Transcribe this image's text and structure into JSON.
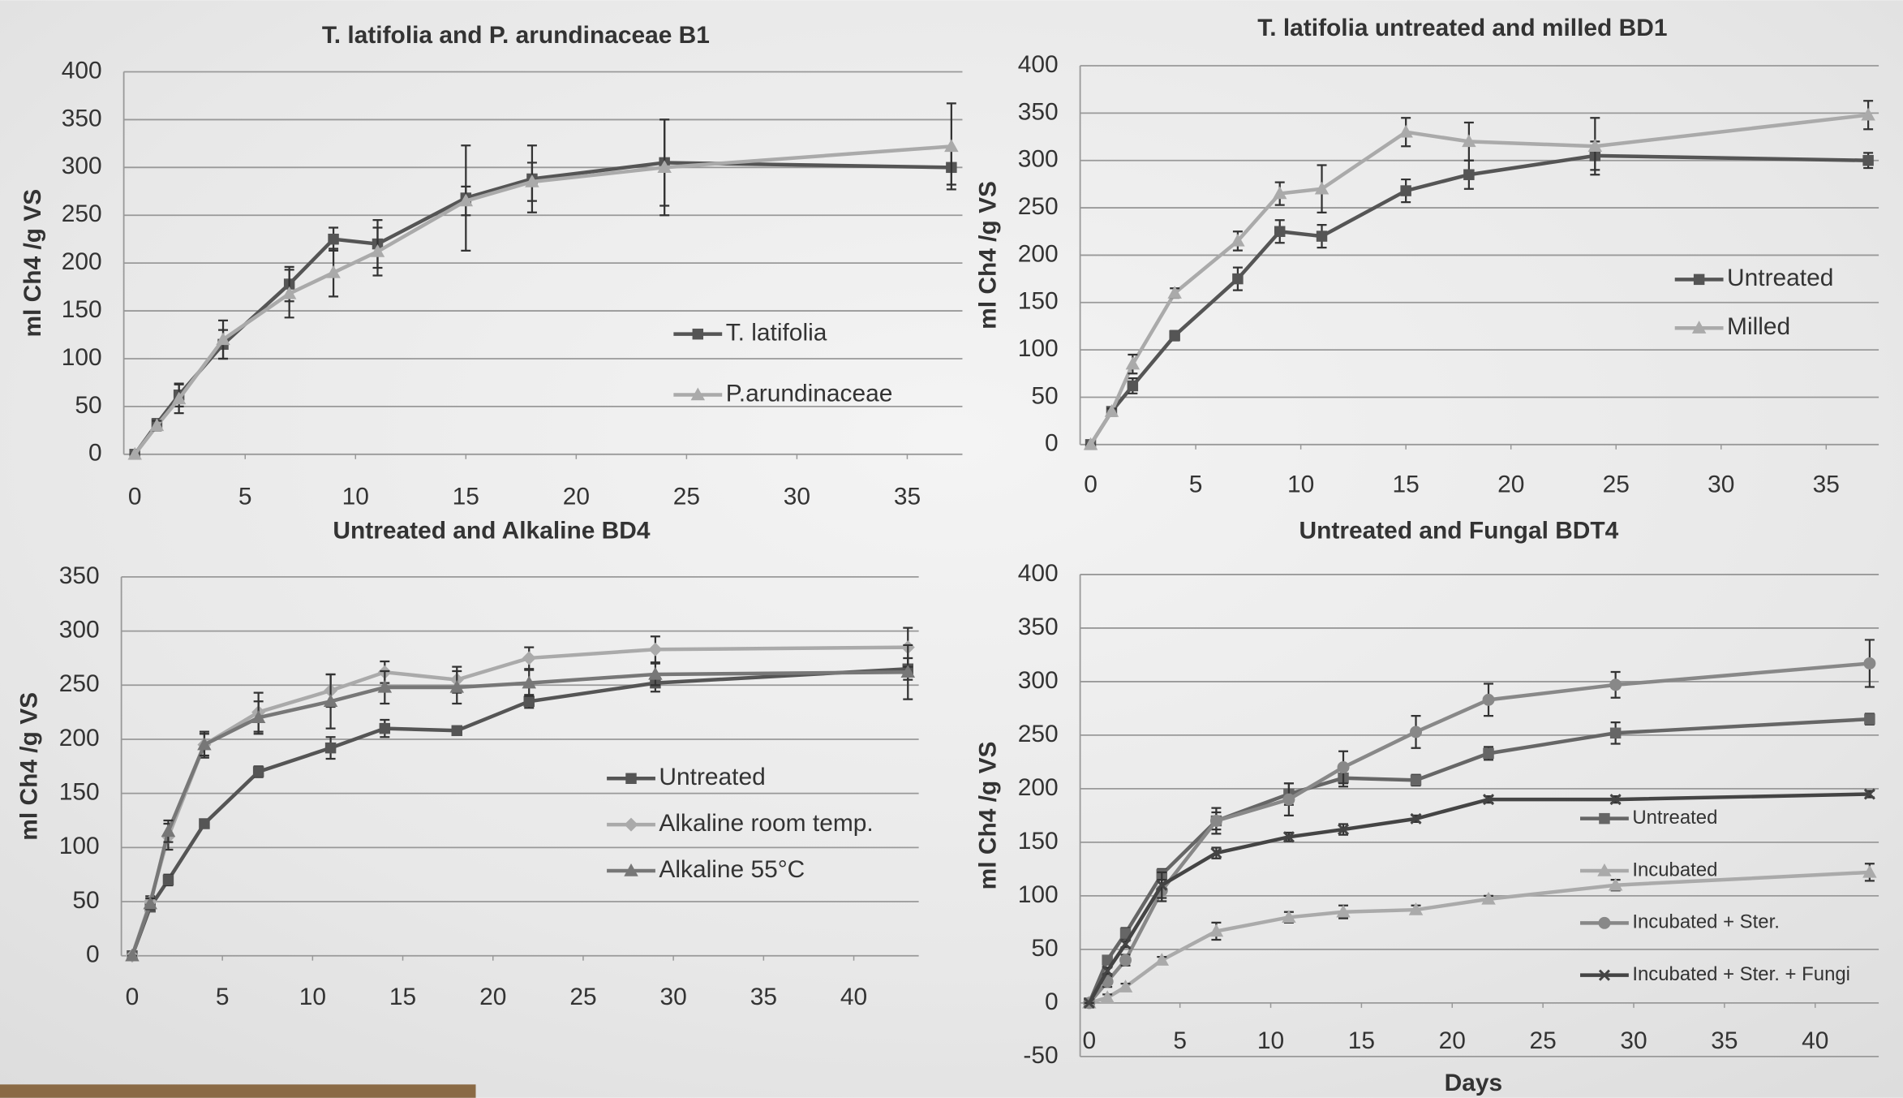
{
  "chart_data": [
    {
      "type": "line",
      "title": "T. latifolia and P. arundinaceae B1",
      "y_label": "ml Ch4 /g VS",
      "x": [
        0,
        1,
        2,
        4,
        7,
        9,
        11,
        15,
        18,
        24,
        37
      ],
      "xlim": [
        -0.5,
        37.5
      ],
      "xticks": [
        0,
        5,
        10,
        15,
        20,
        25,
        30,
        35
      ],
      "ylim": [
        0,
        400
      ],
      "yticks": [
        0,
        50,
        100,
        150,
        200,
        250,
        300,
        350,
        400
      ],
      "grid": true,
      "series": [
        {
          "name": "T. latifolia",
          "color": "#555555",
          "marker": "square",
          "values": [
            0,
            32,
            62,
            115,
            178,
            225,
            220,
            268,
            288,
            305,
            300
          ],
          "errors": [
            0,
            5,
            12,
            15,
            18,
            12,
            25,
            55,
            35,
            45,
            18
          ]
        },
        {
          "name": "P.arundinaceae",
          "color": "#aaaaaa",
          "marker": "triangle",
          "values": [
            0,
            30,
            58,
            120,
            168,
            190,
            212,
            265,
            285,
            300,
            322
          ],
          "errors": [
            0,
            5,
            15,
            20,
            25,
            25,
            25,
            15,
            20,
            50,
            45
          ]
        }
      ]
    },
    {
      "type": "line",
      "title": "T. latifolia untreated and milled BD1",
      "y_label": "ml Ch4 /g VS",
      "x": [
        0,
        1,
        2,
        4,
        7,
        9,
        11,
        15,
        18,
        24,
        37
      ],
      "xlim": [
        -0.5,
        37.5
      ],
      "xticks": [
        0,
        5,
        10,
        15,
        20,
        25,
        30,
        35
      ],
      "ylim": [
        0,
        400
      ],
      "yticks": [
        0,
        50,
        100,
        150,
        200,
        250,
        300,
        350,
        400
      ],
      "grid": true,
      "series": [
        {
          "name": "Untreated",
          "color": "#555555",
          "marker": "square",
          "values": [
            0,
            35,
            62,
            115,
            175,
            225,
            220,
            268,
            285,
            305,
            300
          ],
          "errors": [
            0,
            3,
            8,
            5,
            12,
            12,
            12,
            12,
            15,
            15,
            8
          ]
        },
        {
          "name": "Milled",
          "color": "#aaaaaa",
          "marker": "triangle",
          "values": [
            0,
            35,
            85,
            160,
            215,
            265,
            270,
            330,
            320,
            315,
            348
          ],
          "errors": [
            0,
            3,
            10,
            5,
            10,
            12,
            25,
            15,
            20,
            30,
            15
          ]
        }
      ]
    },
    {
      "type": "line",
      "title": "Untreated and Alkaline BD4",
      "y_label": "ml Ch4 /g VS",
      "x": [
        0,
        1,
        2,
        4,
        7,
        11,
        14,
        18,
        22,
        29,
        43
      ],
      "xlim": [
        -0.6,
        43.6
      ],
      "xticks": [
        0,
        5,
        10,
        15,
        20,
        25,
        30,
        35,
        40
      ],
      "ylim": [
        0,
        350
      ],
      "yticks": [
        0,
        50,
        100,
        150,
        200,
        250,
        300,
        350
      ],
      "grid": true,
      "series": [
        {
          "name": "Untreated",
          "color": "#555555",
          "marker": "square",
          "values": [
            0,
            45,
            70,
            122,
            170,
            192,
            210,
            208,
            235,
            252,
            265
          ],
          "errors": [
            0,
            3,
            5,
            4,
            5,
            10,
            8,
            4,
            6,
            8,
            10
          ]
        },
        {
          "name": "Alkaline room temp.",
          "color": "#aaaaaa",
          "marker": "diamond",
          "values": [
            0,
            50,
            110,
            195,
            225,
            245,
            262,
            255,
            275,
            283,
            285
          ],
          "errors": [
            0,
            5,
            12,
            12,
            18,
            15,
            10,
            12,
            10,
            12,
            18
          ]
        },
        {
          "name": "Alkaline 55°C",
          "color": "#777777",
          "marker": "triangle",
          "values": [
            0,
            48,
            115,
            195,
            220,
            235,
            248,
            248,
            252,
            260,
            262
          ],
          "errors": [
            0,
            5,
            10,
            10,
            15,
            25,
            15,
            15,
            12,
            10,
            25
          ]
        }
      ]
    },
    {
      "type": "line",
      "title": "Untreated and Fungal BDT4",
      "y_label": "ml Ch4 /g VS",
      "x_label": "Days",
      "x": [
        0,
        1,
        2,
        4,
        7,
        11,
        14,
        18,
        22,
        29,
        43
      ],
      "xlim": [
        -0.5,
        43.5
      ],
      "xticks": [
        0,
        5,
        10,
        15,
        20,
        25,
        30,
        35,
        40
      ],
      "ylim": [
        -50,
        400
      ],
      "yticks": [
        -50,
        0,
        50,
        100,
        150,
        200,
        250,
        300,
        350,
        400
      ],
      "grid": true,
      "series": [
        {
          "name": "Untreated",
          "color": "#666666",
          "marker": "square",
          "values": [
            0,
            40,
            65,
            120,
            170,
            195,
            210,
            208,
            233,
            252,
            265
          ],
          "errors": [
            0,
            4,
            5,
            5,
            8,
            10,
            8,
            5,
            6,
            10,
            5
          ]
        },
        {
          "name": "Incubated",
          "color": "#aaaaaa",
          "marker": "triangle",
          "values": [
            0,
            5,
            15,
            40,
            67,
            80,
            85,
            87,
            97,
            110,
            122
          ],
          "errors": [
            0,
            3,
            3,
            3,
            8,
            5,
            6,
            4,
            3,
            5,
            8
          ]
        },
        {
          "name": "Incubated + Ster.",
          "color": "#888888",
          "marker": "circle",
          "values": [
            0,
            20,
            40,
            105,
            170,
            190,
            220,
            253,
            283,
            297,
            317
          ],
          "errors": [
            0,
            5,
            5,
            10,
            12,
            15,
            15,
            15,
            15,
            12,
            22
          ]
        },
        {
          "name": "Incubated + Ster. + Fungi",
          "color": "#444444",
          "marker": "cross",
          "values": [
            0,
            30,
            55,
            110,
            140,
            155,
            162,
            172,
            190,
            190,
            195
          ],
          "errors": [
            0,
            3,
            3,
            12,
            5,
            4,
            5,
            3,
            3,
            3,
            3
          ]
        }
      ]
    }
  ]
}
